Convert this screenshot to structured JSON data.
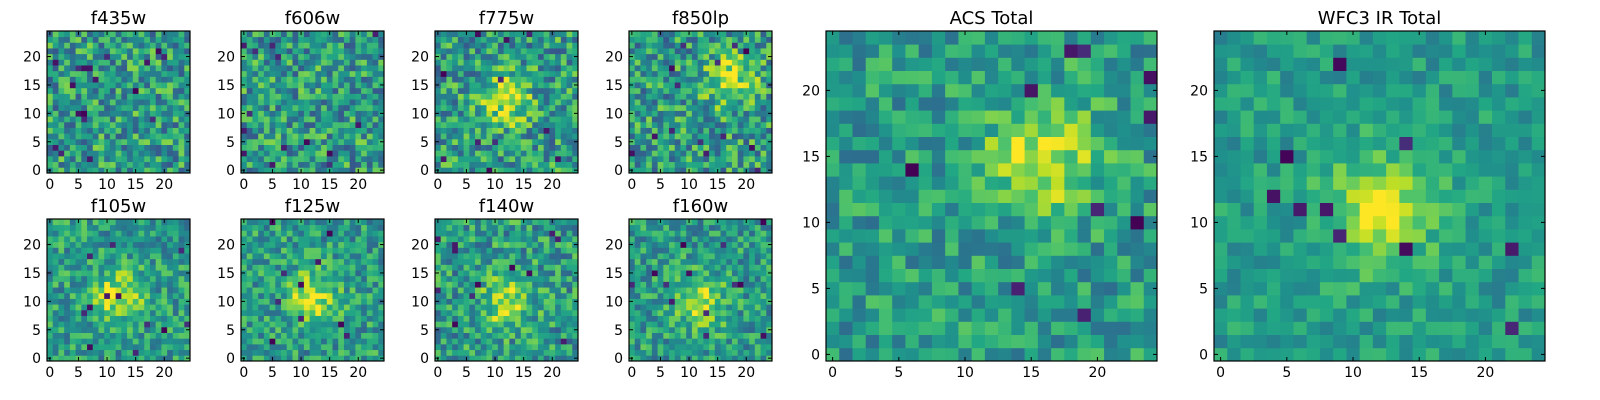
{
  "figure": {
    "title": ""
  },
  "colors": {
    "colormap": "viridis"
  },
  "chart_data": [
    {
      "type": "heatmap",
      "title": "f435w",
      "xlim": [
        0,
        24
      ],
      "ylim": [
        0,
        24
      ],
      "xticks": [
        "0",
        "5",
        "10",
        "15",
        "20"
      ],
      "yticks": [
        "0",
        "5",
        "10",
        "15",
        "20"
      ],
      "grid_size": 25,
      "peak": null,
      "noise": 1.0,
      "dark_pixels": 18
    },
    {
      "type": "heatmap",
      "title": "f606w",
      "xlim": [
        0,
        24
      ],
      "ylim": [
        0,
        24
      ],
      "xticks": [
        "0",
        "5",
        "10",
        "15",
        "20"
      ],
      "yticks": [
        "0",
        "5",
        "10",
        "15",
        "20"
      ],
      "grid_size": 25,
      "peak": null,
      "noise": 1.0,
      "dark_pixels": 14
    },
    {
      "type": "heatmap",
      "title": "f775w",
      "xlim": [
        0,
        24
      ],
      "ylim": [
        0,
        24
      ],
      "xticks": [
        "0",
        "5",
        "10",
        "15",
        "20"
      ],
      "yticks": [
        "0",
        "5",
        "10",
        "15",
        "20"
      ],
      "grid_size": 25,
      "peak": [
        12,
        12
      ],
      "noise": 1.0,
      "dark_pixels": 12
    },
    {
      "type": "heatmap",
      "title": "f850lp",
      "xlim": [
        0,
        24
      ],
      "ylim": [
        0,
        24
      ],
      "xticks": [
        "0",
        "5",
        "10",
        "15",
        "20"
      ],
      "yticks": [
        "0",
        "5",
        "10",
        "15",
        "20"
      ],
      "grid_size": 25,
      "peak": [
        17,
        16
      ],
      "noise": 1.0,
      "dark_pixels": 14
    },
    {
      "type": "heatmap",
      "title": "f105w",
      "xlim": [
        0,
        24
      ],
      "ylim": [
        0,
        24
      ],
      "xticks": [
        "0",
        "5",
        "10",
        "15",
        "20"
      ],
      "yticks": [
        "0",
        "5",
        "10",
        "15",
        "20"
      ],
      "grid_size": 25,
      "peak": [
        12,
        11
      ],
      "noise": 0.8,
      "dark_pixels": 12
    },
    {
      "type": "heatmap",
      "title": "f125w",
      "xlim": [
        0,
        24
      ],
      "ylim": [
        0,
        24
      ],
      "xticks": [
        "0",
        "5",
        "10",
        "15",
        "20"
      ],
      "yticks": [
        "0",
        "5",
        "10",
        "15",
        "20"
      ],
      "grid_size": 25,
      "peak": [
        12,
        11
      ],
      "noise": 0.8,
      "dark_pixels": 10
    },
    {
      "type": "heatmap",
      "title": "f140w",
      "xlim": [
        0,
        24
      ],
      "ylim": [
        0,
        24
      ],
      "xticks": [
        "0",
        "5",
        "10",
        "15",
        "20"
      ],
      "yticks": [
        "0",
        "5",
        "10",
        "15",
        "20"
      ],
      "grid_size": 25,
      "peak": [
        12,
        10
      ],
      "noise": 0.9,
      "dark_pixels": 12
    },
    {
      "type": "heatmap",
      "title": "f160w",
      "xlim": [
        0,
        24
      ],
      "ylim": [
        0,
        24
      ],
      "xticks": [
        "0",
        "5",
        "10",
        "15",
        "20"
      ],
      "yticks": [
        "0",
        "5",
        "10",
        "15",
        "20"
      ],
      "grid_size": 25,
      "peak": [
        12,
        10
      ],
      "noise": 0.8,
      "dark_pixels": 14
    },
    {
      "type": "heatmap",
      "title": "ACS Total",
      "xlim": [
        0,
        24
      ],
      "ylim": [
        0,
        24
      ],
      "xticks": [
        "0",
        "5",
        "10",
        "15",
        "20"
      ],
      "yticks": [
        "0",
        "5",
        "10",
        "15",
        "20"
      ],
      "grid_size": 25,
      "peak": [
        16,
        15
      ],
      "noise": 0.7,
      "dark_pixels": 10
    },
    {
      "type": "heatmap",
      "title": "WFC3 IR Total",
      "xlim": [
        0,
        24
      ],
      "ylim": [
        0,
        24
      ],
      "xticks": [
        "0",
        "5",
        "10",
        "15",
        "20"
      ],
      "yticks": [
        "0",
        "5",
        "10",
        "15",
        "20"
      ],
      "grid_size": 25,
      "peak": [
        12,
        11
      ],
      "noise": 0.5,
      "dark_pixels": 10
    }
  ]
}
